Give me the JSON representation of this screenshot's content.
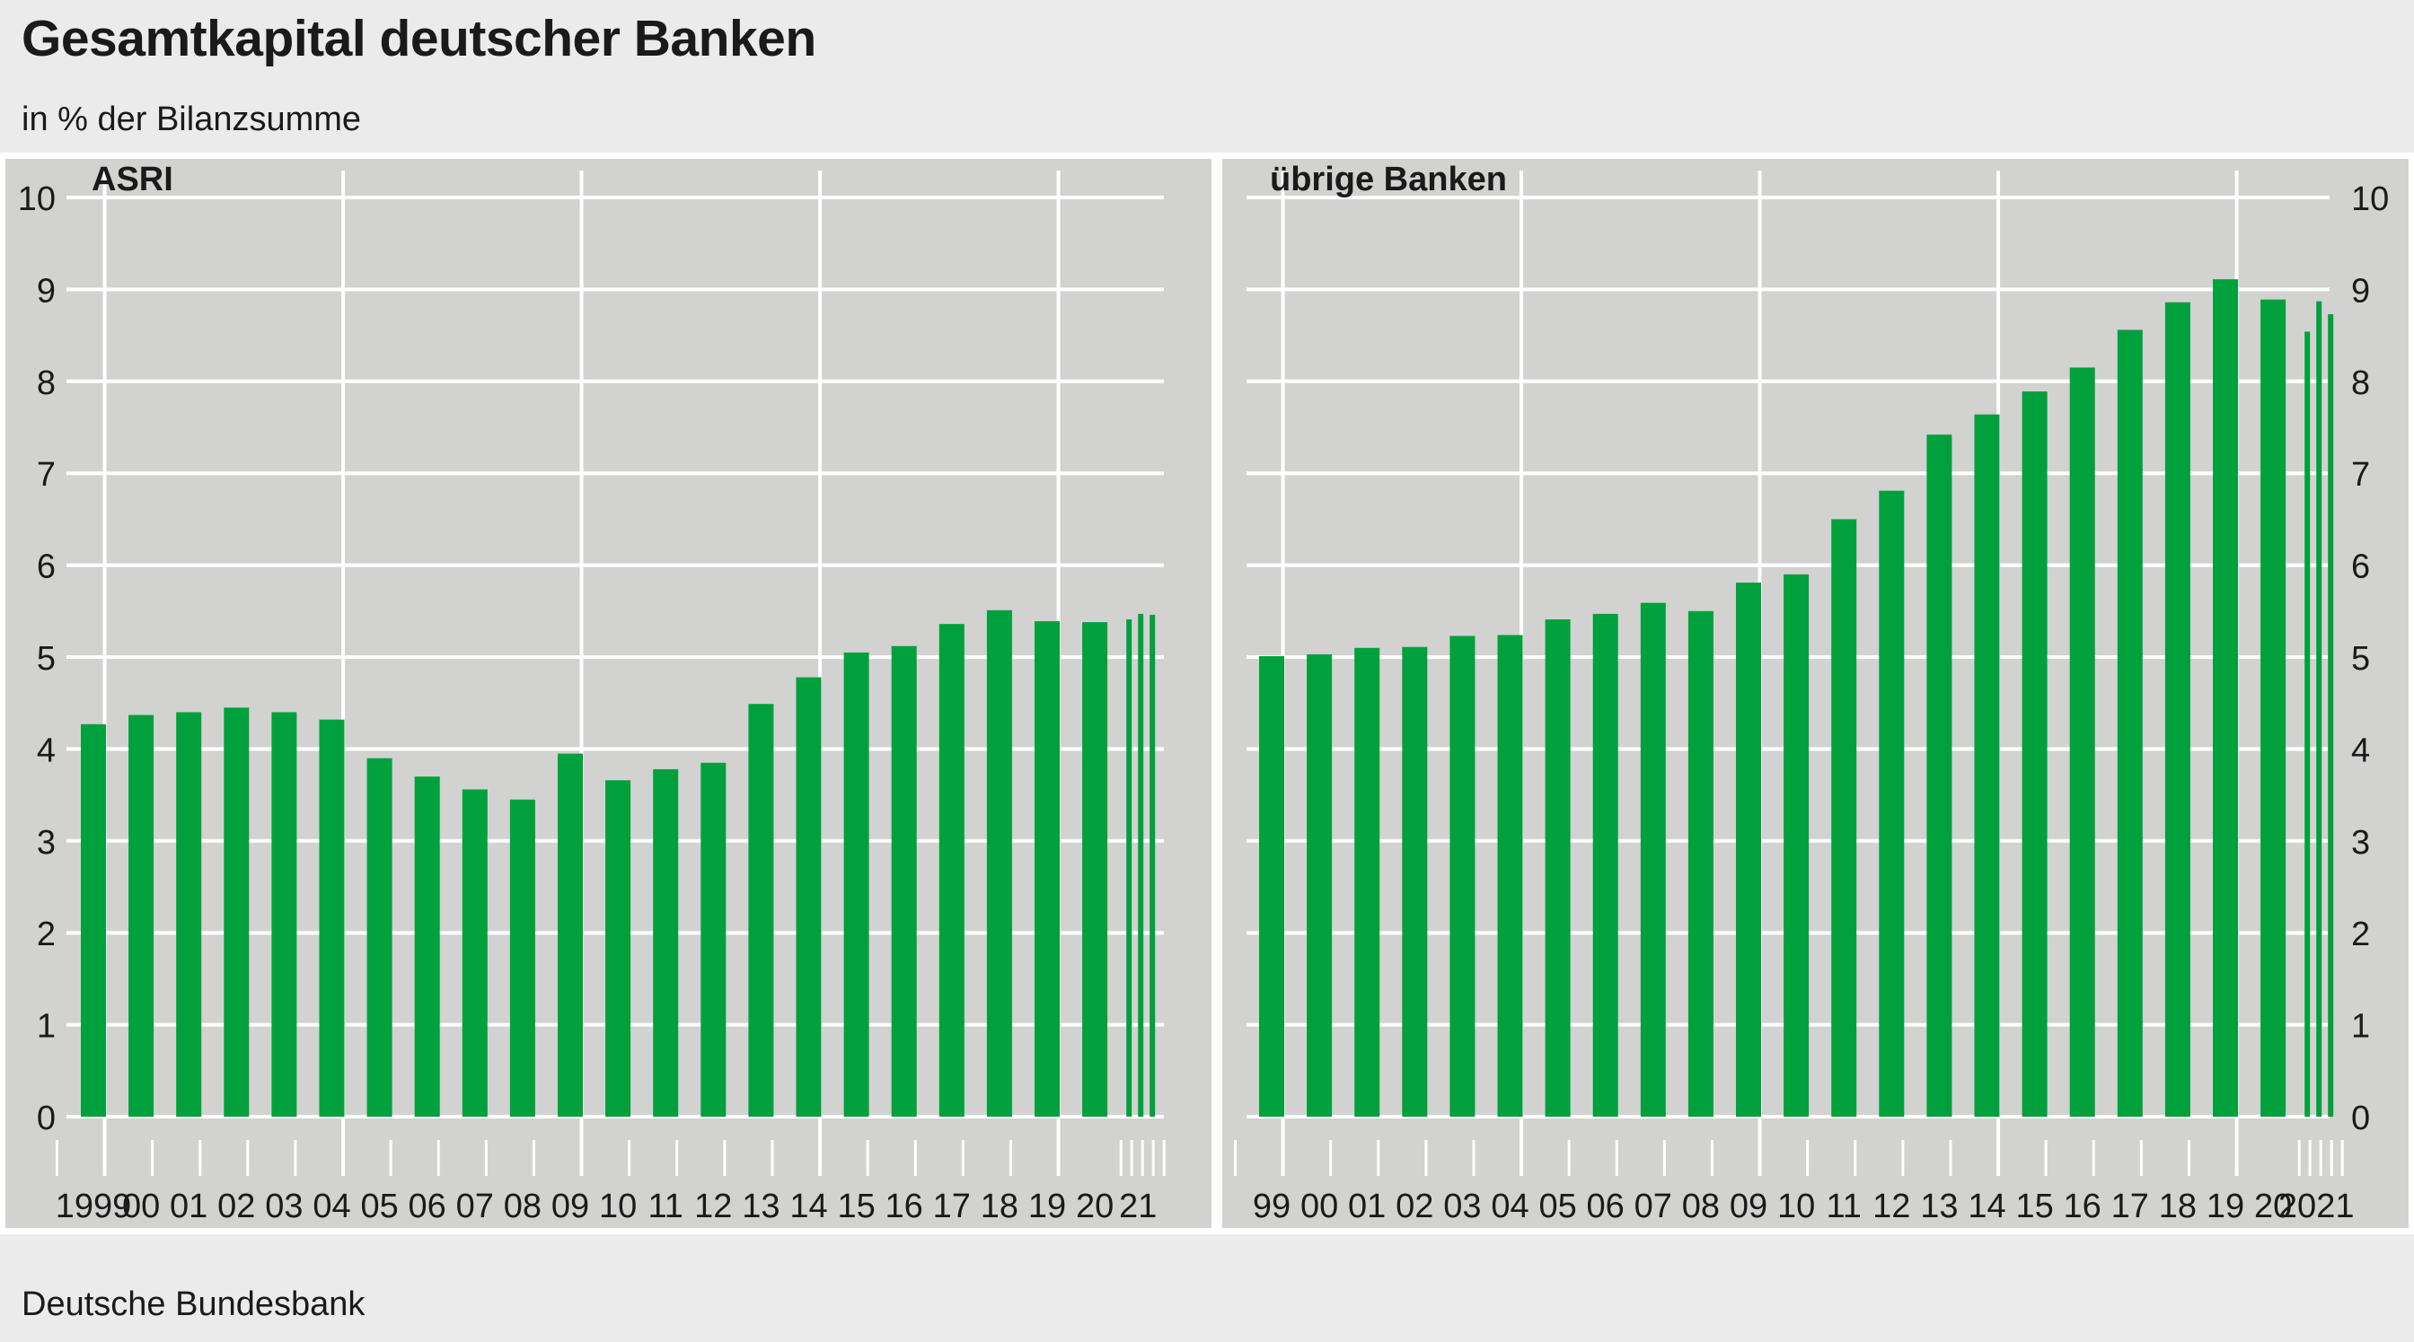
{
  "title": "Gesamtkapital deutscher Banken",
  "subtitle": "in % der Bilanzsumme",
  "source": "Deutsche Bundesbank",
  "colors": {
    "bar": "#00a03c",
    "plot_bg": "#d2d2d1",
    "grid": "#ffffff",
    "page_bg": "#ebebeb"
  },
  "chart_data": [
    {
      "type": "bar",
      "title": "ASRI",
      "ylim": [
        0,
        10
      ],
      "yticks": [
        0,
        1,
        2,
        3,
        4,
        5,
        6,
        7,
        8,
        9,
        10
      ],
      "x_tick_labels": [
        "1999",
        "00",
        "01",
        "02",
        "03",
        "04",
        "05",
        "06",
        "07",
        "08",
        "09",
        "10",
        "11",
        "12",
        "13",
        "14",
        "15",
        "16",
        "17",
        "18",
        "19",
        "20",
        "21"
      ],
      "categories": [
        "1999",
        "2000",
        "2001",
        "2002",
        "2003",
        "2004",
        "2005",
        "2006",
        "2007",
        "2008",
        "2009",
        "2010",
        "2011",
        "2012",
        "2013",
        "2014",
        "2015",
        "2016",
        "2017",
        "2018",
        "2019",
        "2020"
      ],
      "values": [
        4.27,
        4.37,
        4.4,
        4.45,
        4.4,
        4.32,
        3.9,
        3.7,
        3.56,
        3.45,
        3.95,
        3.66,
        3.78,
        3.85,
        4.49,
        4.78,
        5.05,
        5.12,
        5.36,
        5.51,
        5.39,
        5.38
      ],
      "quarterly_2021": [
        5.41,
        5.47,
        5.46
      ]
    },
    {
      "type": "bar",
      "title": "übrige Banken",
      "ylim": [
        0,
        10
      ],
      "yticks": [
        0,
        1,
        2,
        3,
        4,
        5,
        6,
        7,
        8,
        9,
        10
      ],
      "x_tick_labels": [
        "99",
        "00",
        "01",
        "02",
        "03",
        "04",
        "05",
        "06",
        "07",
        "08",
        "09",
        "10",
        "11",
        "12",
        "13",
        "14",
        "15",
        "16",
        "17",
        "18",
        "19",
        "20",
        "2021"
      ],
      "categories": [
        "1999",
        "2000",
        "2001",
        "2002",
        "2003",
        "2004",
        "2005",
        "2006",
        "2007",
        "2008",
        "2009",
        "2010",
        "2011",
        "2012",
        "2013",
        "2014",
        "2015",
        "2016",
        "2017",
        "2018",
        "2019",
        "2020"
      ],
      "values": [
        5.01,
        5.03,
        5.1,
        5.11,
        5.23,
        5.24,
        5.41,
        5.47,
        5.59,
        5.5,
        5.81,
        5.9,
        6.5,
        6.81,
        7.42,
        7.64,
        7.89,
        8.15,
        8.56,
        8.86,
        9.11,
        8.89
      ],
      "quarterly_2021": [
        8.54,
        8.87,
        8.73
      ]
    }
  ]
}
